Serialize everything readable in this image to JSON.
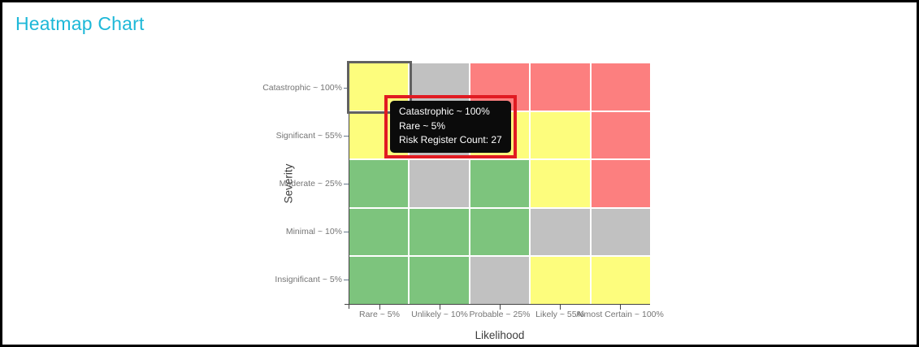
{
  "page": {
    "title": "Heatmap Chart",
    "title_color": "#1db8d8",
    "border_color": "#000000",
    "background_color": "#ffffff"
  },
  "chart_data": {
    "type": "heatmap",
    "title": "Heatmap Chart",
    "xlabel": "Likelihood",
    "ylabel": "Severity",
    "x_categories": [
      "Rare ~ 5%",
      "Unlikely ~ 10%",
      "Probable ~ 25%",
      "Likely ~ 55%",
      "Almost Certain ~ 100%"
    ],
    "y_categories": [
      "Catastrophic ~ 100%",
      "Significant ~ 55%",
      "Moderate ~ 25%",
      "Minimal ~ 10%",
      "Insignificant ~ 5%"
    ],
    "cell_colors": [
      [
        "yellow",
        "gray",
        "red",
        "red",
        "red"
      ],
      [
        "yellow",
        "gray",
        "yellow",
        "yellow",
        "red"
      ],
      [
        "green",
        "gray",
        "green",
        "yellow",
        "red"
      ],
      [
        "green",
        "green",
        "green",
        "gray",
        "gray"
      ],
      [
        "green",
        "green",
        "gray",
        "yellow",
        "yellow"
      ]
    ],
    "palette": {
      "green": "#7dc47d",
      "gray": "#c1c1c1",
      "yellow": "#fdfd7d",
      "red": "#fc7f7f"
    },
    "gridline_color": "#ffffff",
    "legend": false,
    "selected_cell": {
      "row_index": 0,
      "col_index": 0,
      "row": "Catastrophic ~ 100%",
      "col": "Rare ~ 5%"
    }
  },
  "tooltip": {
    "severity": "Catastrophic ~ 100%",
    "likelihood": "Rare ~ 5%",
    "count_line": "Risk Register Count: 27",
    "risk_register_count": 27,
    "background_color": "#0b0b0b",
    "text_color": "#ffffff",
    "highlight_border_color": "#e11b22"
  }
}
